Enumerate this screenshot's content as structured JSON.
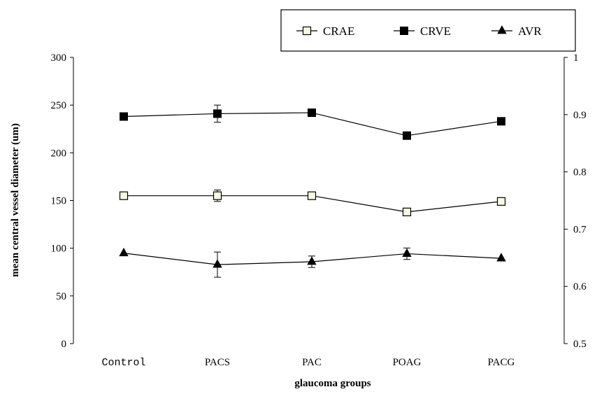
{
  "chart_data": {
    "type": "line",
    "categories": [
      "Control",
      "PACS",
      "PAC",
      "POAG",
      "PACG"
    ],
    "xlabel": "glaucoma groups",
    "ylabel": "mean central vessel diameter (um)",
    "ylim": [
      0,
      300
    ],
    "yticks": [
      "0",
      "50",
      "100",
      "150",
      "200",
      "250",
      "300"
    ],
    "y2lim": [
      0.5,
      1
    ],
    "y2ticks": [
      "0.5",
      "0.6",
      "0.7",
      "0.8",
      "0.9",
      "1"
    ],
    "grid": false,
    "legend_position": "top-right",
    "series": [
      {
        "name": "CRAE",
        "axis": "left",
        "marker": "open-square",
        "values": [
          155,
          155,
          155,
          138,
          149
        ],
        "errors": [
          0,
          6,
          0,
          0,
          0
        ]
      },
      {
        "name": "CRVE",
        "axis": "left",
        "marker": "filled-square",
        "values": [
          238,
          241,
          242,
          218,
          233
        ],
        "errors": [
          0,
          9,
          0,
          0,
          0
        ]
      },
      {
        "name": "AVR",
        "axis": "right",
        "marker": "triangle",
        "values": [
          0.658,
          0.638,
          0.643,
          0.657,
          0.649
        ],
        "errors": [
          0,
          0.022,
          0.01,
          0.01,
          0
        ]
      }
    ]
  }
}
